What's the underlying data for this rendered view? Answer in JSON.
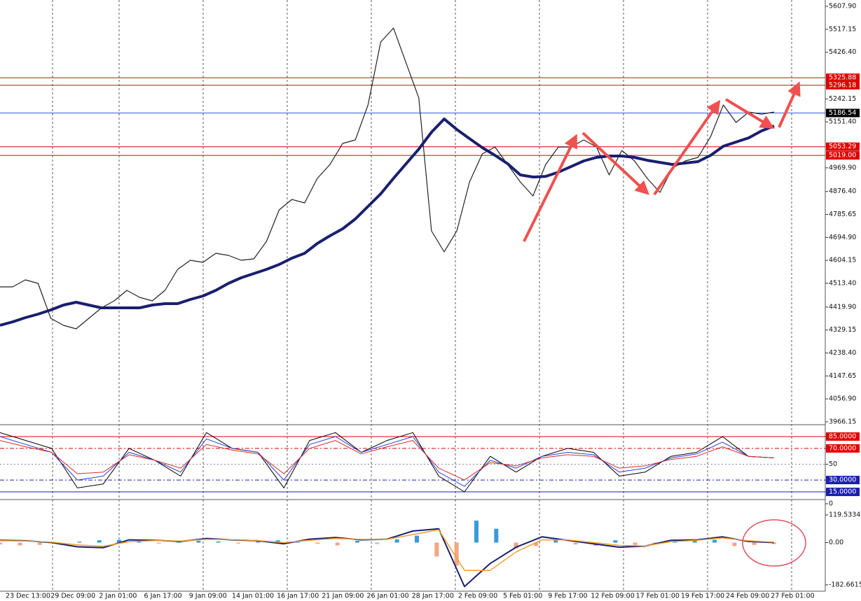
{
  "chart_data": [
    {
      "type": "line",
      "ylim": [
        3955,
        5633
      ],
      "yticks": [
        {
          "value": 5607.9,
          "label": "5607.90"
        },
        5517.15,
        {
          "value": 5426.4,
          "label": "5426.40"
        },
        5242.15,
        {
          "value": 5151.4,
          "label": "5151.40"
        },
        {
          "value": 4969.9,
          "label": "4969.90"
        },
        {
          "value": 4876.4,
          "label": "4876.40"
        },
        4785.65,
        {
          "value": 4694.9,
          "label": "4694.90"
        },
        4604.15,
        {
          "value": 4513.4,
          "label": "4513.40"
        },
        {
          "value": 4419.9,
          "label": "4419.90"
        },
        4329.15,
        {
          "value": 4238.4,
          "label": "4238.40"
        },
        4147.65,
        {
          "value": 4056.9,
          "label": "4056.90"
        },
        3966.15
      ],
      "levels": [
        {
          "value": 5325.88,
          "color": "#e00000",
          "label_color": "#e00000"
        },
        {
          "value": 5296.18,
          "color": "#e00000",
          "label_color": "#e00000"
        },
        {
          "value": 5186.54,
          "color": "#3b5bdb",
          "label_color": "#000000"
        },
        {
          "value": 5053.29,
          "color": "#e00000",
          "label_color": "#e00000"
        },
        {
          "value": 5019,
          "label": "5019.00",
          "color": "#e00000",
          "label_color": "#e00000"
        }
      ],
      "series": [
        {
          "color": "#222222",
          "width": 1.2,
          "values": [
            4499.5,
            4499.5,
            4527.2,
            4513.4,
            4375.2,
            4347.5,
            4333.7,
            4375.2,
            4416.6,
            4444.3,
            4485.7,
            4458.1,
            4444.3,
            4485.7,
            4568.6,
            4604.6,
            4596.3,
            4632.2,
            4623.9,
            4604.6,
            4610.1,
            4679.2,
            4803.6,
            4845.0,
            4831.2,
            4928.0,
            4983.2,
            5066.2,
            5080.0,
            5218.2,
            5466.9,
            5522.2,
            5384.0,
            5245.8,
            4720.7,
            4637.7,
            4720.7,
            4914.1,
            5024.7,
            5052.3,
            4983.2,
            4914.1,
            4858.9,
            4983.2,
            5052.3,
            5052.3,
            5080.0,
            5052.3,
            4941.8,
            5038.5,
            4997.1,
            4928.0,
            4872.7,
            4969.4,
            4997.1,
            5010.9,
            5093.8,
            5218.2,
            5149.1,
            5190.5,
            5182.2,
            5190.5
          ]
        },
        {
          "color": "#1a1f6e",
          "width": 4,
          "values": [
            4347.5,
            4361.3,
            4377.9,
            4391.7,
            4408.3,
            4427.7,
            4438.7,
            4427.7,
            4416.6,
            4416.6,
            4416.6,
            4416.6,
            4427.7,
            4433.2,
            4433.2,
            4449.8,
            4463.6,
            4485.7,
            4513.4,
            4535.5,
            4552.1,
            4568.6,
            4588.0,
            4612.9,
            4632.2,
            4670.9,
            4701.3,
            4728.9,
            4767.6,
            4817.4,
            4867.1,
            4928.0,
            4986.0,
            5044.0,
            5110.4,
            5162.9,
            5121.4,
            5085.5,
            5049.6,
            5019.2,
            4986.0,
            4941.8,
            4933.5,
            4936.2,
            4952.8,
            4974.9,
            4997.1,
            5010.9,
            5016.4,
            5016.4,
            5010.9,
            4999.8,
            4991.5,
            4983.2,
            4988.8,
            4994.3,
            5019.2,
            5055.1,
            5071.7,
            5088.3,
            5115.9,
            5135.3
          ]
        }
      ]
    },
    {
      "type": "line",
      "ylim": [
        0,
        100
      ],
      "yticks": [
        {
          "value": 85,
          "label": "85.0000",
          "color": "#e00000",
          "line": "solid",
          "label_color": "#e00000"
        },
        {
          "value": 70,
          "label": "70.0000",
          "color": "#e00000",
          "line": "dashed",
          "label_color": "#e00000"
        },
        {
          "value": 50,
          "color": "#888888",
          "line": "dotted"
        },
        {
          "value": 30,
          "label": "30.0000",
          "color": "#1a1fb0",
          "line": "dashed",
          "label_color": "#1a1fb0"
        },
        {
          "value": 15,
          "label": "15.0000",
          "color": "#1a1fb0",
          "line": "solid",
          "label_color": "#1a1fb0"
        },
        0
      ],
      "series": [
        {
          "color": "#000000",
          "width": 1,
          "values": [
            90,
            80,
            70,
            20,
            25,
            70,
            55,
            35,
            90,
            70,
            65,
            20,
            80,
            90,
            65,
            80,
            90,
            35,
            15,
            60,
            40,
            60,
            70,
            65,
            35,
            40,
            60,
            65,
            85,
            60,
            58
          ]
        },
        {
          "color": "#2b3fd6",
          "width": 1,
          "values": [
            85,
            75,
            65,
            30,
            35,
            65,
            55,
            40,
            82,
            70,
            65,
            30,
            75,
            85,
            65,
            75,
            85,
            40,
            22,
            55,
            45,
            60,
            65,
            62,
            40,
            45,
            58,
            63,
            78,
            60,
            58
          ]
        },
        {
          "color": "#d62b2b",
          "width": 1,
          "values": [
            80,
            72,
            65,
            38,
            40,
            62,
            55,
            45,
            75,
            68,
            63,
            38,
            70,
            80,
            63,
            72,
            80,
            45,
            30,
            52,
            48,
            58,
            62,
            60,
            45,
            48,
            56,
            60,
            72,
            60,
            58
          ]
        }
      ]
    },
    {
      "type": "line",
      "ylim": [
        -210,
        186
      ],
      "yticks": [
        119.5334,
        {
          "value": 0,
          "label": "0.00"
        },
        -182.6615
      ],
      "histogram": {
        "positive_color": "#3a9ad9",
        "negative_color": "#f4a582",
        "values": [
          -8,
          -12,
          -10,
          -6,
          4,
          10,
          12,
          6,
          -4,
          4,
          8,
          5,
          -4,
          6,
          10,
          8,
          -5,
          -12,
          8,
          -6,
          14,
          30,
          -60,
          -100,
          95,
          60,
          -25,
          -15,
          10,
          -8,
          -14,
          10,
          -10,
          -6,
          10,
          8,
          12,
          -15,
          -10,
          -6
        ]
      },
      "series": [
        {
          "color": "#1a1f6e",
          "width": 2,
          "values": [
            10,
            8,
            0,
            -18,
            -22,
            12,
            10,
            5,
            18,
            12,
            8,
            -5,
            15,
            22,
            12,
            15,
            50,
            60,
            -190,
            -90,
            -20,
            25,
            10,
            -5,
            -20,
            -15,
            10,
            12,
            25,
            5,
            0
          ]
        },
        {
          "color": "#f0a030",
          "width": 1.5,
          "values": [
            8,
            7,
            2,
            -10,
            -16,
            4,
            9,
            7,
            14,
            13,
            9,
            0,
            10,
            18,
            14,
            14,
            35,
            55,
            -120,
            -120,
            -40,
            12,
            12,
            0,
            -12,
            -14,
            4,
            10,
            20,
            8,
            2
          ]
        }
      ],
      "xtick_labels": [
        "23 Dec 13:00",
        "29 Dec 09:00",
        "2 Jan 01:00",
        "6 Jan 17:00",
        "9 Jan 09:00",
        "14 Jan 01:00",
        "16 Jan 17:00",
        "21 Jan 09:00",
        "26 Jan 01:00",
        "28 Jan 17:00",
        "2 Feb 09:00",
        "5 Feb 01:00",
        "9 Feb 17:00",
        "12 Feb 09:00",
        "17 Feb 01:00",
        "19 Feb 17:00",
        "24 Feb 09:00",
        "27 Feb 01:00"
      ]
    }
  ]
}
